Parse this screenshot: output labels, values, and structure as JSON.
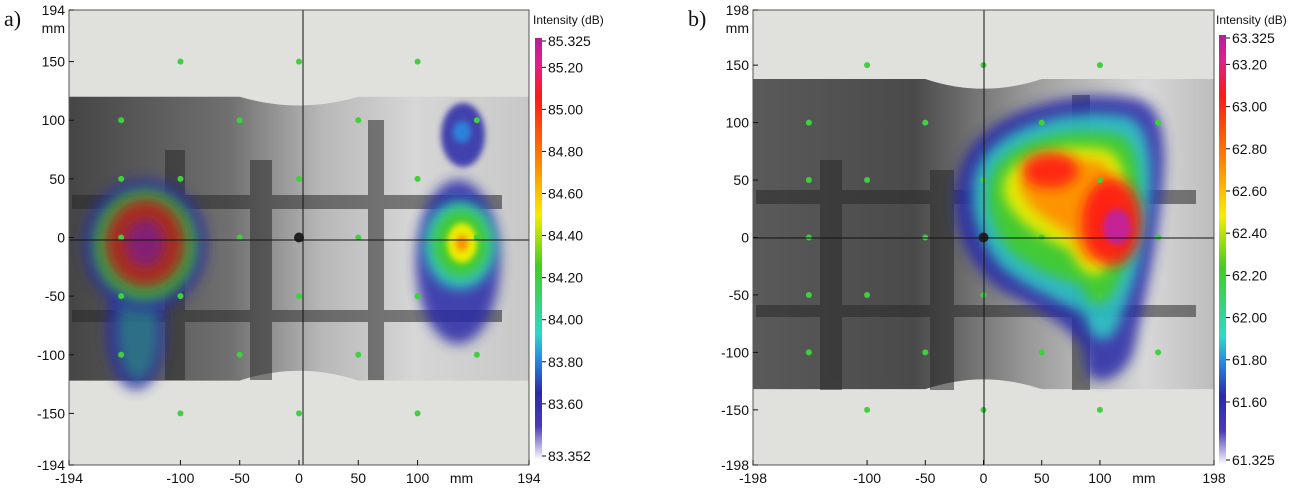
{
  "chart_data": [
    {
      "type": "heatmap",
      "panel_label": "a)",
      "xlim": [
        -194,
        194
      ],
      "ylim": [
        -194,
        194
      ],
      "x_ticks": [
        "-194",
        "-100",
        "-50",
        "0",
        "50",
        "100",
        "194"
      ],
      "x_tick_values": [
        -194,
        -100,
        -50,
        0,
        50,
        100,
        194
      ],
      "x_unit": "mm",
      "y_ticks": [
        "194",
        "150",
        "100",
        "50",
        "0",
        "-50",
        "-100",
        "-150",
        "-194"
      ],
      "y_tick_values": [
        194,
        150,
        100,
        50,
        0,
        -50,
        -100,
        -150,
        -194
      ],
      "y_unit": "mm",
      "colorbar_title": "Intensity (dB)",
      "colorbar_max": "85.325",
      "colorbar_min": "83.352",
      "colorbar_ticks": [
        "85.20",
        "85.00",
        "84.80",
        "84.60",
        "84.40",
        "84.20",
        "84.00",
        "83.80",
        "83.60"
      ],
      "colorbar_tick_values": [
        85.2,
        85.0,
        84.8,
        84.6,
        84.4,
        84.2,
        84.0,
        83.8,
        83.6
      ],
      "colorbar_range": [
        83.352,
        85.325
      ],
      "photo_top_edge": [
        [
          -194,
          120
        ],
        [
          -50,
          120
        ],
        [
          0,
          112
        ],
        [
          50,
          120
        ],
        [
          194,
          120
        ]
      ],
      "photo_bottom_edge": [
        [
          -194,
          -122
        ],
        [
          -50,
          -122
        ],
        [
          0,
          -112
        ],
        [
          50,
          -122
        ],
        [
          194,
          -122
        ]
      ],
      "microphone_positions": [
        [
          -100,
          150
        ],
        [
          0,
          150
        ],
        [
          100,
          150
        ],
        [
          -150,
          100
        ],
        [
          -50,
          100
        ],
        [
          50,
          100
        ],
        [
          150,
          100
        ],
        [
          -150,
          50
        ],
        [
          -100,
          50
        ],
        [
          0,
          50
        ],
        [
          100,
          50
        ],
        [
          -150,
          0
        ],
        [
          -50,
          0
        ],
        [
          50,
          0
        ],
        [
          150,
          0
        ],
        [
          -150,
          -50
        ],
        [
          -100,
          -50
        ],
        [
          0,
          -50
        ],
        [
          100,
          -50
        ],
        [
          -150,
          -100
        ],
        [
          -50,
          -100
        ],
        [
          50,
          -100
        ],
        [
          150,
          -100
        ],
        [
          -100,
          -150
        ],
        [
          0,
          -150
        ],
        [
          100,
          -150
        ]
      ],
      "hotspots": [
        {
          "x": -135,
          "y": 0,
          "peak_db": 85.325
        },
        {
          "x": 135,
          "y": 0,
          "peak_db": 84.8
        },
        {
          "x": 137,
          "y": 92,
          "peak_db": 84.0
        },
        {
          "x": -130,
          "y": -95,
          "peak_db": 84.3
        }
      ],
      "colors": {
        "max": "#c020a0",
        "high": "#ff1010",
        "mid": "#ffee00",
        "low_mid": "#30d030",
        "low": "#28c8e8",
        "min": "#2a1aa0"
      }
    },
    {
      "type": "heatmap",
      "panel_label": "b)",
      "xlim": [
        -198,
        198
      ],
      "ylim": [
        -198,
        198
      ],
      "x_ticks": [
        "-198",
        "-100",
        "-50",
        "0",
        "50",
        "100",
        "198"
      ],
      "x_tick_values": [
        -198,
        -100,
        -50,
        0,
        50,
        100,
        198
      ],
      "x_unit": "mm",
      "y_ticks": [
        "198",
        "150",
        "100",
        "50",
        "0",
        "-50",
        "-100",
        "-150",
        "-198"
      ],
      "y_tick_values": [
        198,
        150,
        100,
        50,
        0,
        -50,
        -100,
        -150,
        -198
      ],
      "y_unit": "mm",
      "colorbar_title": "Intensity (dB)",
      "colorbar_max": "63.325",
      "colorbar_min": "61.325",
      "colorbar_ticks": [
        "63.20",
        "63.00",
        "62.80",
        "62.60",
        "62.40",
        "62.20",
        "62.00",
        "61.80",
        "61.60"
      ],
      "colorbar_tick_values": [
        63.2,
        63.0,
        62.8,
        62.6,
        62.4,
        62.2,
        62.0,
        61.8,
        61.6
      ],
      "colorbar_range": [
        61.325,
        63.325
      ],
      "photo_top_edge": [
        [
          -198,
          138
        ],
        [
          -50,
          138
        ],
        [
          0,
          128
        ],
        [
          50,
          138
        ],
        [
          198,
          138
        ]
      ],
      "photo_bottom_edge": [
        [
          -198,
          -132
        ],
        [
          -50,
          -132
        ],
        [
          0,
          -122
        ],
        [
          50,
          -132
        ],
        [
          198,
          -132
        ]
      ],
      "microphone_positions": [
        [
          -100,
          150
        ],
        [
          0,
          150
        ],
        [
          100,
          150
        ],
        [
          -150,
          100
        ],
        [
          -50,
          100
        ],
        [
          50,
          100
        ],
        [
          150,
          100
        ],
        [
          -150,
          50
        ],
        [
          -100,
          50
        ],
        [
          0,
          50
        ],
        [
          100,
          50
        ],
        [
          -150,
          0
        ],
        [
          -50,
          0
        ],
        [
          50,
          0
        ],
        [
          150,
          0
        ],
        [
          -150,
          -50
        ],
        [
          -100,
          -50
        ],
        [
          0,
          -50
        ],
        [
          100,
          -50
        ],
        [
          -150,
          -100
        ],
        [
          -50,
          -100
        ],
        [
          50,
          -100
        ],
        [
          150,
          -100
        ],
        [
          -100,
          -150
        ],
        [
          0,
          -150
        ],
        [
          100,
          -150
        ]
      ],
      "hotspots": [
        {
          "x": 115,
          "y": 10,
          "peak_db": 63.325
        },
        {
          "x": 50,
          "y": 60,
          "peak_db": 62.9
        },
        {
          "x": 110,
          "y": -80,
          "peak_db": 62.0
        }
      ],
      "colors": {
        "max": "#c020a0",
        "high": "#ff1010",
        "mid": "#ffee00",
        "low_mid": "#30d030",
        "low": "#28c8e8",
        "min": "#2a1aa0"
      }
    }
  ]
}
